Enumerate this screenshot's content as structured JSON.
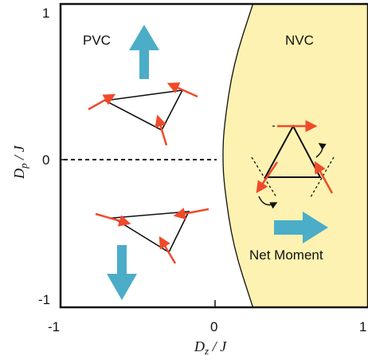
{
  "chart_data": {
    "type": "phase-diagram",
    "xlabel": {
      "symbol": "D",
      "sub": "z",
      "unit": " / J"
    },
    "ylabel": {
      "symbol": "D",
      "sub": "p",
      "unit": " / J"
    },
    "xlim": [
      -1,
      1
    ],
    "ylim": [
      -1,
      1
    ],
    "x_ticks": [
      "-1",
      "0",
      "1"
    ],
    "y_ticks": [
      "1",
      "0",
      "-1"
    ],
    "regions": [
      {
        "id": "pvc",
        "label": "PVC",
        "color": "#ffffff"
      },
      {
        "id": "nvc",
        "label": "NVC",
        "color": "#fdf2b1"
      }
    ],
    "annotations": {
      "net_moment": "Net Moment"
    },
    "colors": {
      "arrow_blue": "#4badc8",
      "spin_red": "#f04a2a",
      "nvc_fill": "#fdf2b1"
    },
    "phase_boundary": [
      [
        0.25,
        -1.0
      ],
      [
        0.12,
        -0.6
      ],
      [
        0.06,
        -0.2
      ],
      [
        0.05,
        0.0
      ],
      [
        0.06,
        0.2
      ],
      [
        0.12,
        0.6
      ],
      [
        0.25,
        1.0
      ]
    ]
  }
}
